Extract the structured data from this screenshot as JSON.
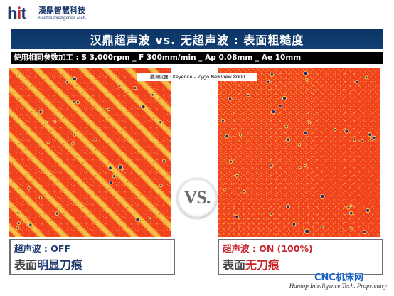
{
  "logo": {
    "mark": "hit",
    "company_cn": "漢鼎智慧科技",
    "company_en": "Hantop Intelligence Tech."
  },
  "title": "汉鼎超声波 vs. 无超声波 : 表面粗糙度",
  "subtitle": "使用相同参数加工 : S 3,000rpm _ F 300mm/min _ Ap 0.08mm _ Ae 10mm",
  "instrument_label": "量测仪器 : Keyence – Zygo NewView 8000",
  "left_panel": {
    "mode_label": "超声波 : ",
    "mode_value": "OFF",
    "desc_prefix": "表面",
    "desc_highlight": "明显刀痕",
    "label_color": "#1f3a6e",
    "highlight_color": "#1f3a6e"
  },
  "right_panel": {
    "mode_label": "超声波 : ",
    "mode_value": "ON (100%)",
    "desc_prefix": "表面",
    "desc_highlight": "无刀痕",
    "label_color": "#c8242b",
    "highlight_color": "#c8242b"
  },
  "vs_badge": "VS.",
  "watermark": "CNC机床网",
  "footer_note": "Hantop Intelligence Tech. Proprietary",
  "colors": {
    "title_bg": "#0b3566",
    "surface_red": "#f2431f",
    "surface_yellow": "#f6c445",
    "pit_blue": "#1a2a8a"
  }
}
